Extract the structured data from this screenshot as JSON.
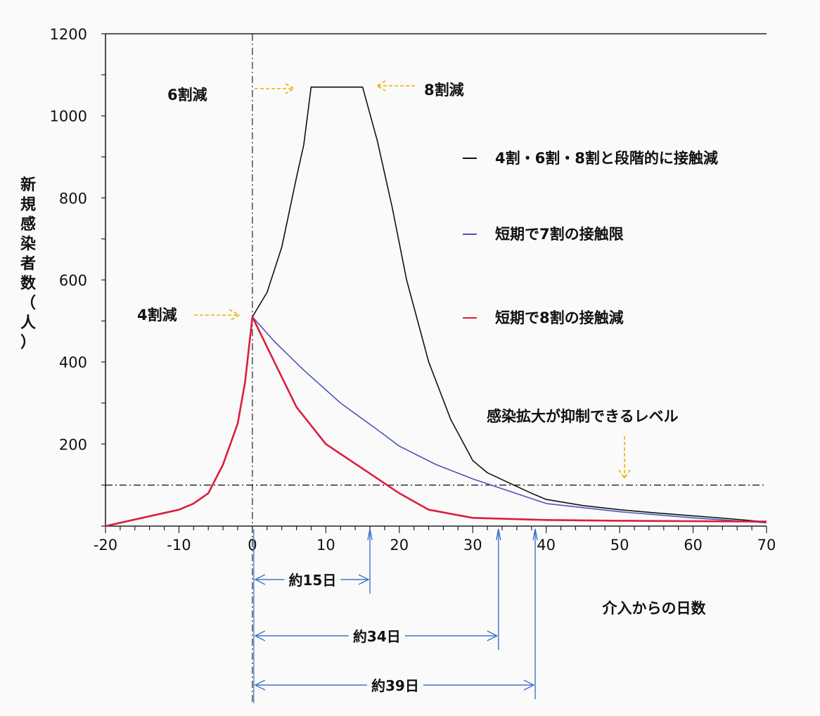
{
  "chart_data": {
    "type": "line",
    "ylabel": "新規感染者数（人）",
    "xlabel": "介入からの日数",
    "xlim": [
      -20,
      70
    ],
    "ylim": [
      0,
      1200
    ],
    "xticks": [
      -20,
      -10,
      0,
      10,
      20,
      30,
      40,
      50,
      60,
      70
    ],
    "yticks": [
      200,
      400,
      600,
      800,
      1000,
      1200
    ],
    "grid": false,
    "legend_position": "right",
    "series": [
      {
        "name": "4割・6割・8割と段階的に接触減",
        "color": "#111111",
        "x": [
          0,
          2,
          4,
          6,
          7,
          8,
          10,
          13,
          15,
          17,
          19,
          21,
          24,
          27,
          30,
          32,
          35,
          38,
          40,
          45,
          50,
          55,
          60,
          65,
          70
        ],
        "y": [
          510,
          570,
          680,
          850,
          930,
          1070,
          1070,
          1070,
          1070,
          940,
          780,
          600,
          400,
          260,
          160,
          130,
          105,
          80,
          65,
          50,
          40,
          32,
          25,
          18,
          10
        ]
      },
      {
        "name": "短期で7割の接触限",
        "color": "#4a55b8",
        "x": [
          0,
          3,
          7,
          12,
          17,
          20,
          25,
          30,
          35,
          40,
          50,
          60,
          70
        ],
        "y": [
          510,
          450,
          380,
          300,
          235,
          195,
          150,
          115,
          85,
          55,
          35,
          20,
          8
        ]
      },
      {
        "name": "短期で8割の接触減",
        "color": "#d81f3c",
        "x": [
          -20,
          -15,
          -10,
          -8,
          -6,
          -4,
          -2,
          -1,
          0,
          3,
          6,
          10,
          15,
          20,
          24,
          30,
          40,
          50,
          60,
          70
        ],
        "y": [
          0,
          20,
          40,
          55,
          80,
          150,
          250,
          350,
          510,
          400,
          290,
          200,
          140,
          80,
          40,
          20,
          15,
          13,
          12,
          11
        ]
      }
    ],
    "threshold": {
      "y": 100,
      "label": "感染拡大が抑制できるレベル"
    },
    "intervention_x": 0,
    "annotations": {
      "reduce4": "4割減",
      "reduce6": "6割減",
      "reduce8": "8割減"
    },
    "durations": [
      {
        "label": "約15日",
        "from": 0,
        "to": 16
      },
      {
        "label": "約34日",
        "from": 0,
        "to": 33.5
      },
      {
        "label": "約39日",
        "from": 0,
        "to": 38.5
      }
    ]
  }
}
